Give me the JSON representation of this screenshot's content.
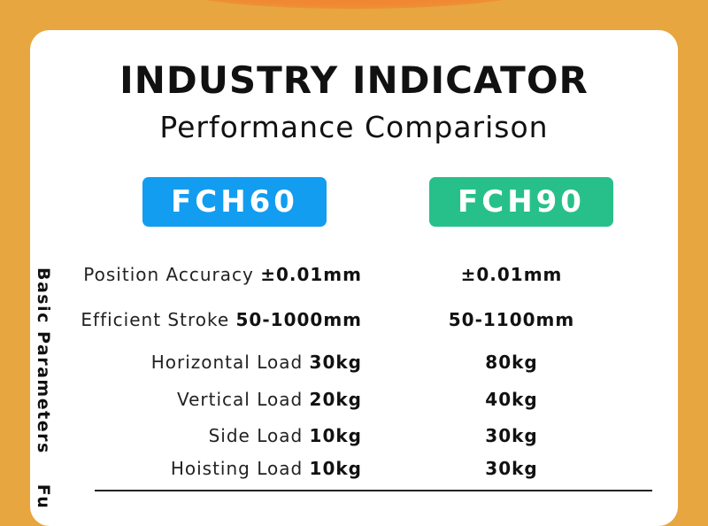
{
  "header": {
    "title": "INDUSTRY INDICATOR",
    "subtitle": "Performance Comparison"
  },
  "models": [
    "FCH60",
    "FCH90"
  ],
  "colors": {
    "background": "#e7a63f",
    "fch60": "#129df0",
    "fch90": "#27c08b"
  },
  "sidebar": {
    "section": "Basic Parameters",
    "next_section_partial": "Fu"
  },
  "rows": [
    {
      "label": "Position Accuracy",
      "fch60": "±0.01mm",
      "fch90": "±0.01mm"
    },
    {
      "label": "Efficient Stroke",
      "fch60": "50-1000mm",
      "fch90": "50-1100mm"
    },
    {
      "label": "Horizontal Load",
      "fch60": "30kg",
      "fch90": "80kg"
    },
    {
      "label": "Vertical Load",
      "fch60": "20kg",
      "fch90": "40kg"
    },
    {
      "label": "Side Load",
      "fch60": "10kg",
      "fch90": "30kg"
    },
    {
      "label": "Hoisting Load",
      "fch60": "10kg",
      "fch90": "30kg"
    }
  ]
}
